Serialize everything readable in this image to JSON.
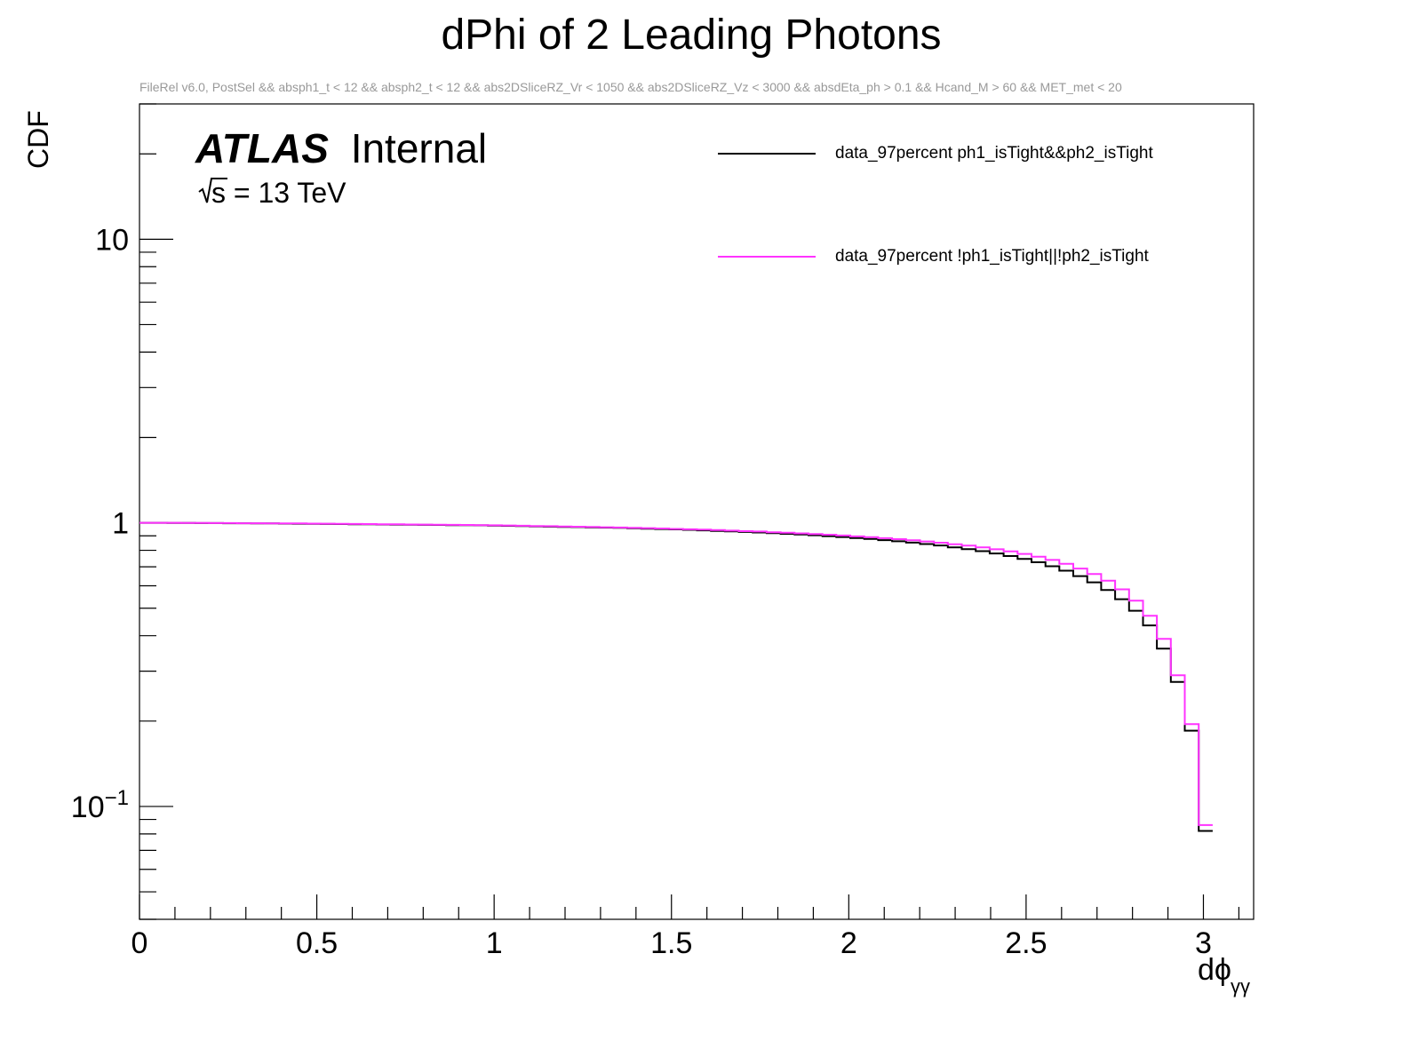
{
  "chart_data": {
    "type": "line",
    "title": "dPhi of 2 Leading Photons",
    "subtitle": "FileRel v6.0, PostSel &&  absph1_t < 12 && absph2_t < 12 && abs2DSliceRZ_Vr < 1050 && abs2DSliceRZ_Vz < 3000 && absdEta_ph > 0.1 && Hcand_M > 60 && MET_met < 20",
    "atlas_label": "ATLAS",
    "atlas_status": "Internal",
    "energy_label": "s = 13 TeV",
    "ylabel": "CDF",
    "xlabel_main": "dϕ",
    "xlabel_sub": "γγ",
    "xlim": [
      0,
      3.1416
    ],
    "ylim": [
      0.04,
      30
    ],
    "yscale": "log",
    "x_ticks": [
      "0",
      "0.5",
      "1",
      "1.5",
      "2",
      "2.5",
      "3"
    ],
    "x_tick_values": [
      0,
      0.5,
      1,
      1.5,
      2,
      2.5,
      3
    ],
    "y_ticks": [
      {
        "base": "10",
        "exp": "",
        "value": 10
      },
      {
        "base": "1",
        "exp": "",
        "value": 1
      },
      {
        "base": "10",
        "exp": "−1",
        "value": 0.1
      }
    ],
    "legend_position": "top-right",
    "bin_width": 0.0393,
    "series": [
      {
        "name": "data_97percent ph1_isTight&&ph2_isTight",
        "color": "#000000",
        "bin_edges_start": 0,
        "values": [
          1.0,
          1.0,
          0.999,
          0.999,
          0.998,
          0.998,
          0.997,
          0.997,
          0.996,
          0.995,
          0.994,
          0.993,
          0.992,
          0.991,
          0.99,
          0.989,
          0.988,
          0.987,
          0.986,
          0.985,
          0.984,
          0.983,
          0.982,
          0.981,
          0.98,
          0.978,
          0.976,
          0.974,
          0.972,
          0.97,
          0.968,
          0.966,
          0.964,
          0.962,
          0.96,
          0.957,
          0.954,
          0.951,
          0.948,
          0.945,
          0.941,
          0.937,
          0.933,
          0.929,
          0.925,
          0.92,
          0.915,
          0.91,
          0.904,
          0.898,
          0.891,
          0.884,
          0.877,
          0.869,
          0.861,
          0.852,
          0.842,
          0.832,
          0.82,
          0.808,
          0.795,
          0.78,
          0.764,
          0.746,
          0.726,
          0.703,
          0.678,
          0.649,
          0.617,
          0.58,
          0.538,
          0.49,
          0.435,
          0.36,
          0.275,
          0.185,
          0.082
        ]
      },
      {
        "name": "data_97percent !ph1_isTight||!ph2_isTight",
        "color": "#ff33ff",
        "bin_edges_start": 0,
        "values": [
          1.0,
          1.0,
          1.0,
          0.999,
          0.999,
          0.998,
          0.998,
          0.997,
          0.997,
          0.996,
          0.995,
          0.995,
          0.994,
          0.993,
          0.992,
          0.991,
          0.99,
          0.989,
          0.988,
          0.987,
          0.986,
          0.985,
          0.984,
          0.983,
          0.982,
          0.98,
          0.979,
          0.977,
          0.975,
          0.973,
          0.971,
          0.969,
          0.967,
          0.965,
          0.963,
          0.96,
          0.958,
          0.955,
          0.952,
          0.949,
          0.946,
          0.943,
          0.939,
          0.935,
          0.932,
          0.927,
          0.923,
          0.918,
          0.913,
          0.908,
          0.902,
          0.896,
          0.89,
          0.883,
          0.876,
          0.868,
          0.86,
          0.851,
          0.841,
          0.831,
          0.82,
          0.807,
          0.793,
          0.777,
          0.76,
          0.74,
          0.717,
          0.69,
          0.66,
          0.625,
          0.583,
          0.532,
          0.47,
          0.39,
          0.29,
          0.195,
          0.086
        ]
      }
    ]
  }
}
